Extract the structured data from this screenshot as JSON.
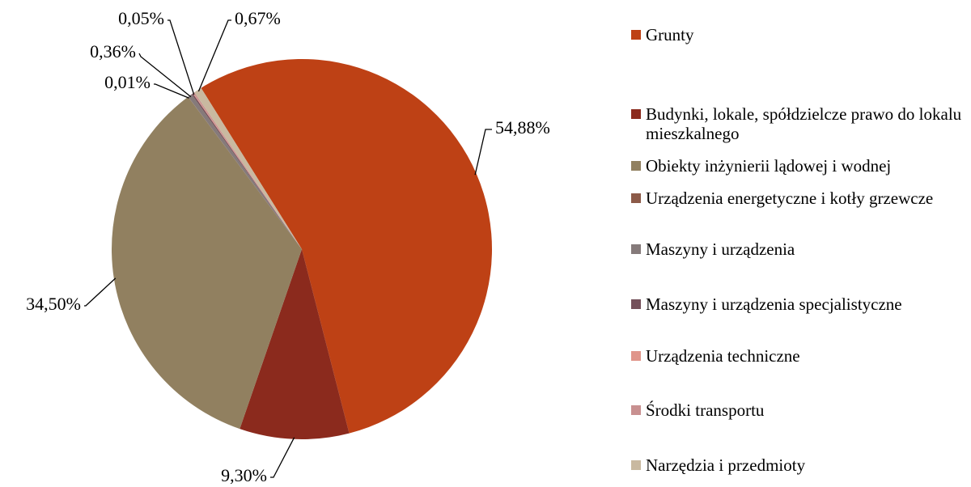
{
  "chart_data": {
    "type": "pie",
    "categories": [
      "Grunty",
      "Budynki, lokale, spółdzielcze prawo do lokalu mieszkalnego",
      "Obiekty inżynierii lądowej i wodnej",
      "Urządzenia energetyczne i kotły grzewcze",
      "Maszyny i urządzenia",
      "Maszyny i urządzenia specjalistyczne",
      "Urządzenia techniczne",
      "Środki transportu",
      "Narzędzia i przedmioty"
    ],
    "values": [
      54.88,
      9.3,
      34.5,
      0.01,
      0.36,
      0.12,
      0.05,
      0.11,
      0.67
    ],
    "value_labels": [
      "54,88%",
      "9,30%",
      "34,50%",
      "0,01%",
      "0,36%",
      null,
      "0,05%",
      null,
      "0,67%"
    ],
    "colors": [
      "#be4115",
      "#8b2a1d",
      "#918060",
      "#8c5a48",
      "#857a7a",
      "#74505a",
      "#e0958a",
      "#c89090",
      "#c9b9a0"
    ],
    "legend": "right"
  }
}
